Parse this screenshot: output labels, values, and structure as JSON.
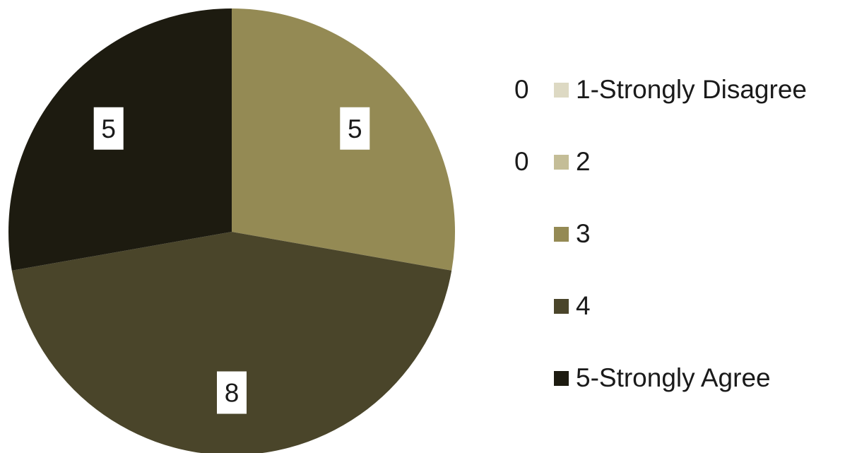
{
  "chart_data": {
    "type": "pie",
    "title": "",
    "categories": [
      "1-Strongly Disagree",
      "2",
      "3",
      "4",
      "5-Strongly Agree"
    ],
    "values": [
      0,
      0,
      5,
      8,
      5
    ],
    "colors": [
      "#ddd9c3",
      "#c4bd97",
      "#948a54",
      "#4a452a",
      "#1d1b10"
    ],
    "data_labels": [
      "0",
      "0",
      "5",
      "8",
      "5"
    ],
    "start_angle_deg": 0,
    "direction": "clockwise",
    "legend": {
      "position": "right",
      "counts_shown": [
        "0",
        "0",
        "",
        "",
        ""
      ]
    }
  }
}
